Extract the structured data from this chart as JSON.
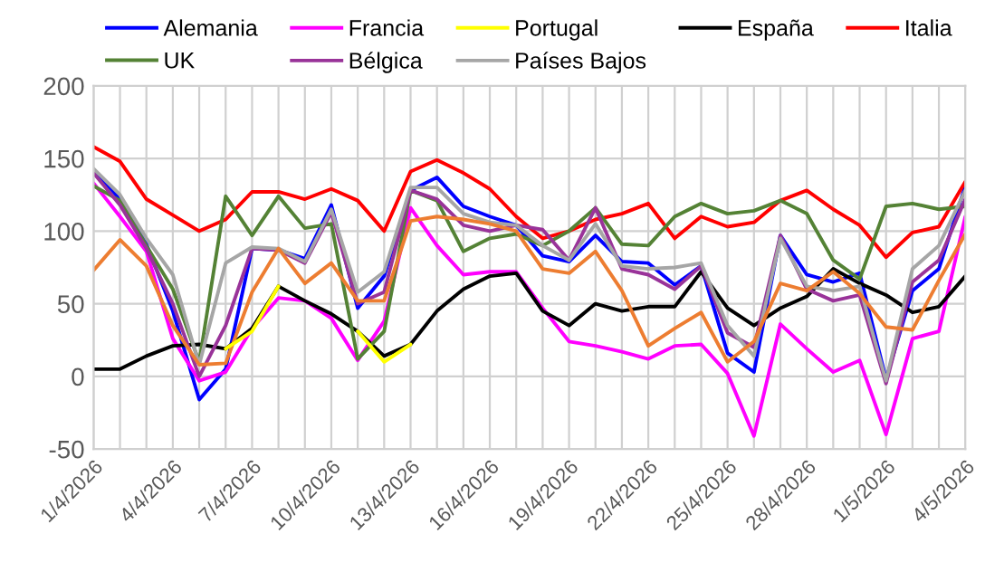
{
  "chart_data": {
    "type": "line",
    "categories": [
      "1/4/2026",
      null,
      null,
      "4/4/2026",
      null,
      null,
      "7/4/2026",
      null,
      null,
      "10/4/2026",
      null,
      null,
      "13/4/2026",
      null,
      null,
      "16/4/2026",
      null,
      null,
      "19/4/2026",
      null,
      null,
      "22/4/2026",
      null,
      null,
      "25/4/2026",
      null,
      null,
      "28/4/2026",
      null,
      null,
      "1/5/2026",
      null,
      null,
      "4/5/2026"
    ],
    "series": [
      {
        "name": "Alemania",
        "color": "#0000ff",
        "values": [
          142,
          122,
          91,
          45,
          -16,
          5,
          88,
          87,
          81,
          118,
          47,
          69,
          128,
          137,
          117,
          110,
          104,
          83,
          79,
          97,
          79,
          78,
          63,
          76,
          16,
          3,
          97,
          70,
          65,
          71,
          -2,
          59,
          74,
          131
        ]
      },
      {
        "name": "Francia",
        "color": "#ff00ff",
        "values": [
          133,
          110,
          86,
          26,
          -3,
          3,
          33,
          54,
          52,
          40,
          11,
          38,
          116,
          90,
          70,
          72,
          72,
          47,
          24,
          21,
          17,
          12,
          21,
          22,
          2,
          -41,
          36,
          19,
          3,
          11,
          -40,
          26,
          31,
          110
        ]
      },
      {
        "name": "Portugal",
        "color": "#ffff00",
        "values": [
          null,
          null,
          null,
          null,
          null,
          19,
          31,
          62,
          null,
          null,
          31,
          10,
          22,
          null,
          null,
          null,
          null,
          null,
          null,
          null,
          null,
          null,
          null,
          null,
          null,
          null,
          null,
          null,
          null,
          null,
          null,
          null,
          null,
          null
        ]
      },
      {
        "name": "España",
        "color": "#000000",
        "values": [
          5,
          5,
          14,
          21,
          22,
          19,
          33,
          62,
          52,
          43,
          31,
          14,
          22,
          45,
          60,
          69,
          71,
          45,
          35,
          50,
          45,
          48,
          48,
          72,
          47,
          35,
          47,
          55,
          74,
          64,
          56,
          44,
          48,
          69
        ]
      },
      {
        "name": "Italia",
        "color": "#ff0000",
        "values": [
          158,
          148,
          122,
          111,
          100,
          108,
          127,
          127,
          122,
          129,
          121,
          100,
          141,
          149,
          140,
          129,
          110,
          95,
          100,
          108,
          112,
          119,
          95,
          110,
          103,
          106,
          121,
          128,
          115,
          104,
          82,
          99,
          103,
          134
        ]
      },
      {
        "name": "UK",
        "color": "#548235",
        "values": [
          131,
          121,
          90,
          60,
          10,
          124,
          97,
          124,
          102,
          105,
          12,
          31,
          128,
          121,
          86,
          95,
          98,
          90,
          100,
          116,
          91,
          90,
          110,
          119,
          112,
          114,
          121,
          112,
          80,
          67,
          117,
          119,
          115,
          117
        ]
      },
      {
        "name": "Bélgica",
        "color": "#993399",
        "values": [
          140,
          118,
          88,
          50,
          0,
          35,
          88,
          87,
          78,
          113,
          50,
          58,
          128,
          122,
          104,
          100,
          104,
          101,
          80,
          116,
          74,
          70,
          60,
          76,
          30,
          20,
          97,
          60,
          52,
          56,
          -5,
          65,
          80,
          122
        ]
      },
      {
        "name": "Países Bajos",
        "color": "#a6a6a6",
        "values": [
          143,
          125,
          95,
          70,
          8,
          78,
          89,
          88,
          79,
          115,
          58,
          72,
          130,
          130,
          112,
          106,
          104,
          90,
          80,
          105,
          76,
          74,
          75,
          78,
          35,
          14,
          95,
          62,
          59,
          62,
          -3,
          74,
          90,
          128
        ]
      },
      {
        "color": "#ed7d31",
        "values": [
          73,
          94,
          76,
          35,
          8,
          9,
          58,
          88,
          64,
          78,
          52,
          52,
          107,
          110,
          108,
          105,
          100,
          74,
          71,
          86,
          59,
          21,
          33,
          44,
          10,
          24,
          64,
          59,
          72,
          57,
          34,
          32,
          66,
          98
        ]
      }
    ],
    "ylim": [
      -50,
      200
    ],
    "yticks": [
      -50,
      0,
      50,
      100,
      150,
      200
    ],
    "grid": true,
    "legend": "top"
  }
}
